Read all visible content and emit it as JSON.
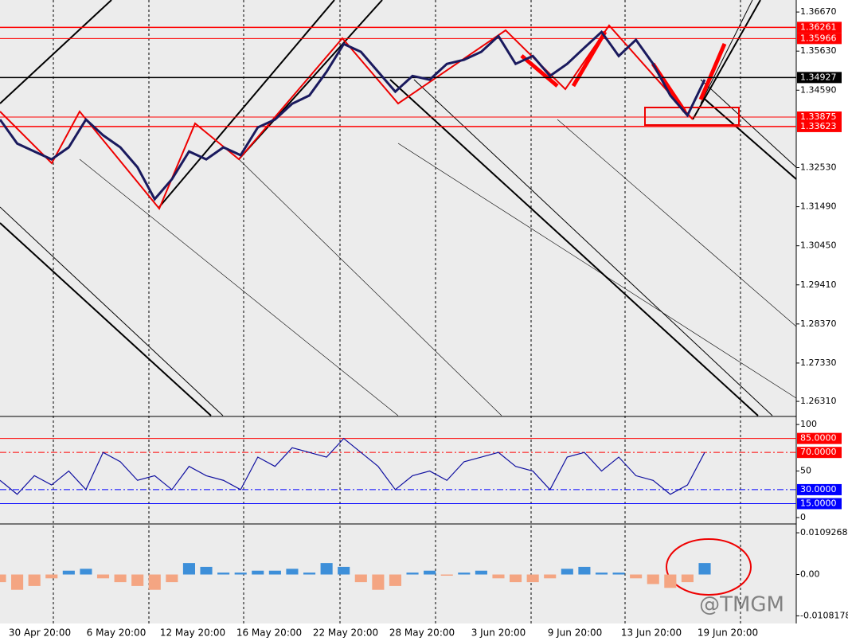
{
  "chart_data": [
    {
      "type": "line",
      "color": "#1a1a5e",
      "values": [
        1.3381,
        1.3317,
        1.3296,
        1.3275,
        1.3307,
        1.3381,
        1.3339,
        1.3307,
        1.3254,
        1.3169,
        1.3222,
        1.3296,
        1.3275,
        1.3307,
        1.3286,
        1.336,
        1.3381,
        1.3423,
        1.3445,
        1.3508,
        1.3582,
        1.3561,
        1.3508,
        1.3455,
        1.3497,
        1.3487,
        1.3529,
        1.354,
        1.3561,
        1.3603,
        1.3529,
        1.355,
        1.3497,
        1.3529,
        1.3572,
        1.3614,
        1.355,
        1.3593,
        1.3529,
        1.3445,
        1.3392,
        1.3487
      ],
      "ylim": [
        1.2593,
        1.3699
      ],
      "yticks": [
        {
          "value": 1.3667,
          "label": "1.36670"
        },
        {
          "value": 1.3563,
          "label": "1.35630"
        },
        {
          "value": 1.3459,
          "label": "1.34590"
        },
        {
          "value": 1.3253,
          "label": "1.32530"
        },
        {
          "value": 1.3149,
          "label": "1.31490"
        },
        {
          "value": 1.3045,
          "label": "1.30450"
        },
        {
          "value": 1.2941,
          "label": "1.29410"
        },
        {
          "value": 1.2837,
          "label": "1.28370"
        },
        {
          "value": 1.2733,
          "label": "1.27330"
        },
        {
          "value": 1.2631,
          "label": "1.26310"
        }
      ],
      "levels": [
        {
          "value": 1.36261,
          "label": "1.36261",
          "color": "#ff0000"
        },
        {
          "value": 1.35966,
          "label": "1.35966",
          "color": "#ff0000"
        },
        {
          "value": 1.34927,
          "label": "1.34927",
          "color": "#000000"
        },
        {
          "value": 1.33875,
          "label": "1.33875",
          "color": "#ff0000"
        },
        {
          "value": 1.33623,
          "label": "1.33623",
          "color": "#ff0000"
        }
      ],
      "date_labels": [
        "30 Apr 20:00",
        "6 May 20:00",
        "12 May 20:00",
        "16 May 20:00",
        "22 May 20:00",
        "28 May 20:00",
        "3 Jun 20:00",
        "9 Jun 20:00",
        "13 Jun 20:00",
        "19 Jun 20:00"
      ]
    },
    {
      "type": "line",
      "color": "#1010a0",
      "values": [
        40,
        25,
        45,
        35,
        50,
        30,
        70,
        60,
        40,
        45,
        30,
        55,
        45,
        40,
        30,
        65,
        55,
        75,
        70,
        65,
        85,
        70,
        55,
        30,
        45,
        50,
        40,
        60,
        65,
        70,
        55,
        50,
        30,
        65,
        70,
        50,
        65,
        45,
        40,
        25,
        35,
        70
      ],
      "ylim": [
        -6,
        107.8
      ],
      "yticks": [
        0,
        50,
        100
      ],
      "levels": [
        {
          "value": 85,
          "label": "85.0000",
          "color": "#ff0000"
        },
        {
          "value": 70,
          "label": "70.0000",
          "color": "#ff0000"
        },
        {
          "value": 30,
          "label": "30.0000",
          "color": "#0000ff"
        },
        {
          "value": 15,
          "label": "15.0000",
          "color": "#0000ff"
        }
      ]
    },
    {
      "type": "bar",
      "positive_color": "#3d8fd9",
      "negative_color": "#f4a582",
      "values": [
        -0.002,
        -0.004,
        -0.003,
        -0.001,
        0.001,
        0.0015,
        -0.001,
        -0.002,
        -0.003,
        -0.004,
        -0.002,
        0.003,
        0.002,
        0.0005,
        0.0005,
        0.001,
        0.001,
        0.0015,
        0.0005,
        0.003,
        0.002,
        -0.002,
        -0.004,
        -0.003,
        0.0005,
        0.001,
        -0.0003,
        0.0005,
        0.001,
        -0.001,
        -0.002,
        -0.002,
        -0.001,
        0.0015,
        0.002,
        0.0005,
        0.0005,
        -0.001,
        -0.0025,
        -0.0035,
        -0.002,
        0.003
      ],
      "ylim": [
        -0.01282,
        0.01303
      ],
      "yticks": [
        0.0109268,
        {
          "value": 0,
          "label": "0.00"
        },
        -0.0108178
      ]
    }
  ],
  "watermark": "@TMGM"
}
